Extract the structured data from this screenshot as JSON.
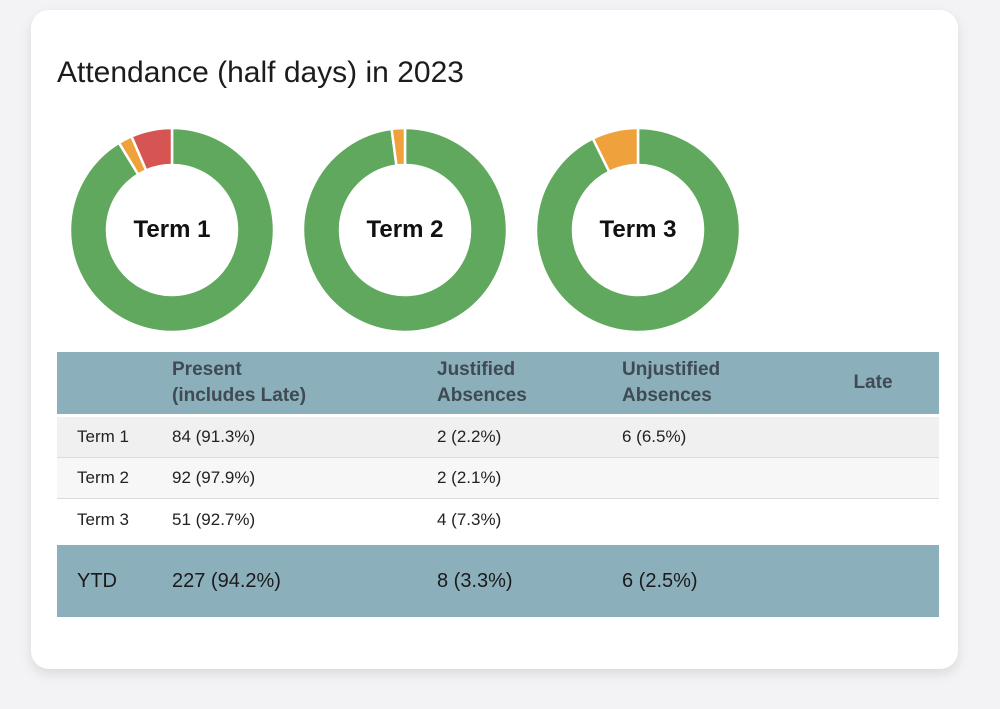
{
  "card": {
    "title": "Attendance (half days) in 2023"
  },
  "colors": {
    "present_green": "#5FA85D",
    "justified_orange": "#EFA23C",
    "unjustified_red": "#D65451",
    "table_header_bg": "#8BB0BC"
  },
  "chart_data": {
    "type": "pie",
    "subtype": "donut",
    "unit": "percent of half days",
    "legend": [
      "Present",
      "Justified Absences",
      "Unjustified Absences"
    ],
    "charts": [
      {
        "label": "Term 1",
        "slices": [
          {
            "name": "Present",
            "value": 91.3,
            "color": "#5FA85D"
          },
          {
            "name": "Justified Absences",
            "value": 2.2,
            "color": "#EFA23C"
          },
          {
            "name": "Unjustified Absences",
            "value": 6.5,
            "color": "#D65451"
          }
        ]
      },
      {
        "label": "Term 2",
        "slices": [
          {
            "name": "Present",
            "value": 97.9,
            "color": "#5FA85D"
          },
          {
            "name": "Justified Absences",
            "value": 2.1,
            "color": "#EFA23C"
          }
        ]
      },
      {
        "label": "Term 3",
        "slices": [
          {
            "name": "Present",
            "value": 92.7,
            "color": "#5FA85D"
          },
          {
            "name": "Justified Absences",
            "value": 7.3,
            "color": "#EFA23C"
          }
        ]
      }
    ]
  },
  "table": {
    "columns": [
      {
        "top": "",
        "bottom": ""
      },
      {
        "top": "Present",
        "bottom": "(includes Late)"
      },
      {
        "top": "Justified",
        "bottom": "Absences"
      },
      {
        "top": "Unjustified",
        "bottom": "Absences"
      },
      {
        "top": "Late",
        "bottom": ""
      }
    ],
    "rows": [
      {
        "label": "Term 1",
        "present": "84 (91.3%)",
        "justified": "2 (2.2%)",
        "unjustified": "6 (6.5%)",
        "late": ""
      },
      {
        "label": "Term 2",
        "present": "92 (97.9%)",
        "justified": "2 (2.1%)",
        "unjustified": "",
        "late": ""
      },
      {
        "label": "Term 3",
        "present": "51 (92.7%)",
        "justified": "4 (7.3%)",
        "unjustified": "",
        "late": ""
      }
    ],
    "summary": {
      "label": "YTD",
      "present": "227 (94.2%)",
      "justified": "8 (3.3%)",
      "unjustified": "6 (2.5%)",
      "late": ""
    }
  }
}
